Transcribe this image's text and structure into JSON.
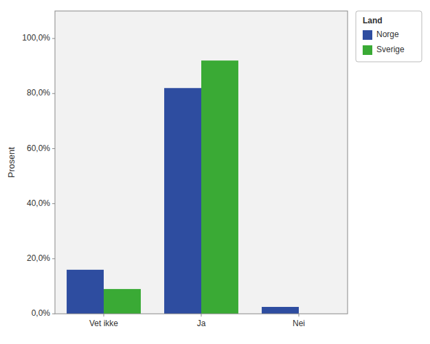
{
  "chart_data": {
    "type": "bar",
    "ylabel": "Prosent",
    "legend_title": "Land",
    "categories": [
      "Vet ikke",
      "Ja",
      "Nei"
    ],
    "series": [
      {
        "name": "Norge",
        "color": "#2e4da0",
        "values": [
          16.0,
          82.0,
          2.5
        ]
      },
      {
        "name": "Sverige",
        "color": "#3aaa35",
        "values": [
          9.0,
          92.0,
          0.0
        ]
      }
    ],
    "ylim": [
      0,
      110
    ],
    "yticks": [
      {
        "value": 0.0,
        "label": "0,0%"
      },
      {
        "value": 20.0,
        "label": "20,0%"
      },
      {
        "value": 40.0,
        "label": "40,0%"
      },
      {
        "value": 60.0,
        "label": "60,0%"
      },
      {
        "value": 80.0,
        "label": "80,0%"
      },
      {
        "value": 100.0,
        "label": "100,0%"
      }
    ],
    "grid": false,
    "legend": "upper right"
  }
}
